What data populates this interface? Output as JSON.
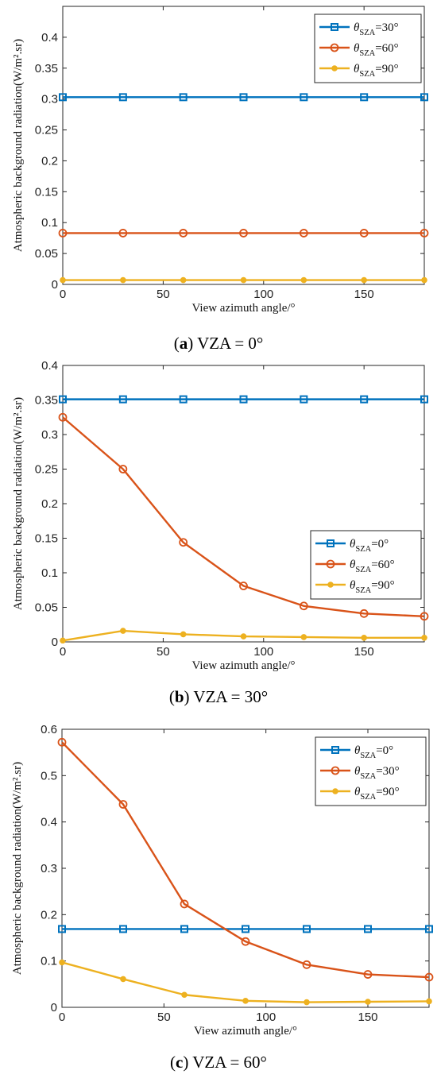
{
  "chart_data": [
    {
      "type": "line",
      "caption_letter": "a",
      "caption_text": "VZA = 0°",
      "xlabel": "View azimuth angle/°",
      "ylabel": "Atmospheric background radiation(W/m².sr)",
      "xlim": [
        0,
        180
      ],
      "ylim": [
        0,
        0.45
      ],
      "xticks": [
        0,
        50,
        100,
        150
      ],
      "yticks": [
        0,
        0.05,
        0.1,
        0.15,
        0.2,
        0.25,
        0.3,
        0.35,
        0.4
      ],
      "ytick_labels": [
        "0",
        "0.05",
        "0.1",
        "0.15",
        "0.2",
        "0.25",
        "0.3",
        "0.35",
        "0.4"
      ],
      "grid": false,
      "legend_position": "top-right",
      "x": [
        0,
        30,
        60,
        90,
        120,
        150,
        180
      ],
      "series": [
        {
          "name_sub": "SZA",
          "name_val": "=30°",
          "marker": "square",
          "color": "#0072BD",
          "values": [
            0.303,
            0.303,
            0.303,
            0.303,
            0.303,
            0.303,
            0.303
          ]
        },
        {
          "name_sub": "SZA",
          "name_val": "=60°",
          "marker": "circle",
          "color": "#D95319",
          "values": [
            0.083,
            0.083,
            0.083,
            0.083,
            0.083,
            0.083,
            0.083
          ]
        },
        {
          "name_sub": "SZA",
          "name_val": "=90°",
          "marker": "dot",
          "color": "#EDB120",
          "values": [
            0.007,
            0.007,
            0.007,
            0.007,
            0.007,
            0.007,
            0.007
          ]
        }
      ]
    },
    {
      "type": "line",
      "caption_letter": "b",
      "caption_text": "VZA = 30°",
      "xlabel": "View azimuth angle/°",
      "ylabel": "Atmospheric background radiation(W/m².sr)",
      "xlim": [
        0,
        180
      ],
      "ylim": [
        0,
        0.4
      ],
      "xticks": [
        0,
        50,
        100,
        150
      ],
      "yticks": [
        0,
        0.05,
        0.1,
        0.15,
        0.2,
        0.25,
        0.3,
        0.35,
        0.4
      ],
      "ytick_labels": [
        "0",
        "0.05",
        "0.1",
        "0.15",
        "0.2",
        "0.25",
        "0.3",
        "0.35",
        "0.4"
      ],
      "grid": false,
      "legend_position": "lower-right",
      "x": [
        0,
        30,
        60,
        90,
        120,
        150,
        180
      ],
      "series": [
        {
          "name_sub": "SZA",
          "name_val": "=0°",
          "marker": "square",
          "color": "#0072BD",
          "values": [
            0.351,
            0.351,
            0.351,
            0.351,
            0.351,
            0.351,
            0.351
          ]
        },
        {
          "name_sub": "SZA",
          "name_val": "=60°",
          "marker": "circle",
          "color": "#D95319",
          "values": [
            0.325,
            0.25,
            0.144,
            0.081,
            0.052,
            0.041,
            0.037
          ]
        },
        {
          "name_sub": "SZA",
          "name_val": "=90°",
          "marker": "dot",
          "color": "#EDB120",
          "values": [
            0.002,
            0.016,
            0.011,
            0.008,
            0.007,
            0.006,
            0.006
          ]
        }
      ]
    },
    {
      "type": "line",
      "caption_letter": "c",
      "caption_text": "VZA = 60°",
      "xlabel": "View azimuth angle/°",
      "ylabel": "Atmospheric background radiation(W/m².sr)",
      "xlim": [
        0,
        180
      ],
      "ylim": [
        0,
        0.6
      ],
      "xticks": [
        0,
        50,
        100,
        150
      ],
      "yticks": [
        0,
        0.1,
        0.2,
        0.3,
        0.4,
        0.5,
        0.6
      ],
      "ytick_labels": [
        "0",
        "0.1",
        "0.2",
        "0.3",
        "0.4",
        "0.5",
        "0.6"
      ],
      "grid": false,
      "legend_position": "top-right",
      "x": [
        0,
        30,
        60,
        90,
        120,
        150,
        180
      ],
      "series": [
        {
          "name_sub": "SZA",
          "name_val": "=0°",
          "marker": "square",
          "color": "#0072BD",
          "values": [
            0.169,
            0.169,
            0.169,
            0.169,
            0.169,
            0.169,
            0.169
          ]
        },
        {
          "name_sub": "SZA",
          "name_val": "=30°",
          "marker": "circle",
          "color": "#D95319",
          "values": [
            0.572,
            0.438,
            0.223,
            0.142,
            0.092,
            0.071,
            0.065
          ]
        },
        {
          "name_sub": "SZA",
          "name_val": "=90°",
          "marker": "dot",
          "color": "#EDB120",
          "values": [
            0.097,
            0.061,
            0.027,
            0.014,
            0.011,
            0.012,
            0.013
          ]
        }
      ]
    }
  ]
}
